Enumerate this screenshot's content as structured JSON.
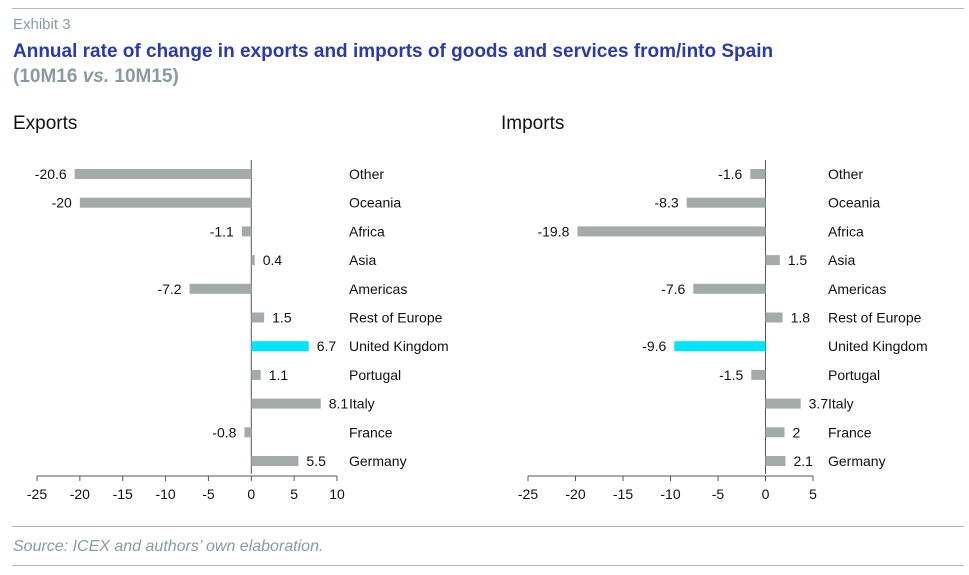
{
  "header": {
    "exhibit": "Exhibit 3",
    "title": "Annual rate of change in exports and imports of goods and services from/into Spain",
    "subtitle_pre": "(10M16 ",
    "subtitle_em": "vs.",
    "subtitle_post": " 10M15)"
  },
  "source": "Source: ICEX and authors’ own elaboration.",
  "colors": {
    "bar": "#a3aaa8",
    "highlight": "#00e5ff",
    "title": "#2b3aa8",
    "muted": "#8a9aa3"
  },
  "chart_data": [
    {
      "type": "bar",
      "orientation": "horizontal",
      "title": "Exports",
      "categories": [
        "Other",
        "Oceania",
        "Africa",
        "Asia",
        "Americas",
        "Rest of Europe",
        "United Kingdom",
        "Portugal",
        "Italy",
        "France",
        "Germany"
      ],
      "values": [
        -20.6,
        -20,
        -1.1,
        0.4,
        -7.2,
        1.5,
        6.7,
        1.1,
        8.1,
        -0.8,
        5.5
      ],
      "value_labels": [
        "-20.6",
        "-20",
        "-1.1",
        "0.4",
        "-7.2",
        "1.5",
        "6.7",
        "1.1",
        "8.1",
        "-0.8",
        "5.5"
      ],
      "highlight": "United Kingdom",
      "xlim": [
        -25,
        10
      ],
      "xticks": [
        -25,
        -20,
        -15,
        -10,
        -5,
        0,
        5,
        10
      ],
      "grid": false,
      "legend": "none"
    },
    {
      "type": "bar",
      "orientation": "horizontal",
      "title": "Imports",
      "categories": [
        "Other",
        "Oceania",
        "Africa",
        "Asia",
        "Americas",
        "Rest of Europe",
        "United Kingdom",
        "Portugal",
        "Italy",
        "France",
        "Germany"
      ],
      "values": [
        -1.6,
        -8.3,
        -19.8,
        1.5,
        -7.6,
        1.8,
        -9.6,
        -1.5,
        3.7,
        2,
        2.1
      ],
      "value_labels": [
        "-1.6",
        "-8.3",
        "-19.8",
        "1.5",
        "-7.6",
        "1.8",
        "-9.6",
        "-1.5",
        "3.7",
        "2",
        "2.1"
      ],
      "highlight": "United Kingdom",
      "xlim": [
        -25,
        5
      ],
      "xticks": [
        -25,
        -20,
        -15,
        -10,
        -5,
        0,
        5
      ],
      "grid": false,
      "legend": "none"
    }
  ]
}
